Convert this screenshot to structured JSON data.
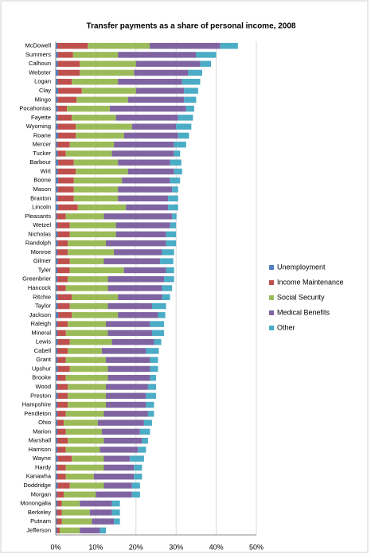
{
  "chart_data": {
    "type": "stacked-barh",
    "title": "Transfer payments as a share of personal income, 2008",
    "categories": [
      "McDowell",
      "Summers",
      "Calhoun",
      "Webster",
      "Logan",
      "Clay",
      "Mingo",
      "Pocahontas",
      "Fayette",
      "Wyoming",
      "Roane",
      "Mercer",
      "Tucker",
      "Barbour",
      "Wirt",
      "Boone",
      "Mason",
      "Braxton",
      "Lincoln",
      "Pleasants",
      "Wetzel",
      "Nicholas",
      "Randolph",
      "Monroe",
      "Gilmer",
      "Tyler",
      "Greenbrier",
      "Hancock",
      "Ritchie",
      "Taylor",
      "Jackson",
      "Raleigh",
      "Mineral",
      "Lewis",
      "Cabell",
      "Grant",
      "Upshur",
      "Brooke",
      "Wood",
      "Preston",
      "Hampshire",
      "Pendleton",
      "Ohio",
      "Marion",
      "Marshall",
      "Harrison",
      "Wayne",
      "Hardy",
      "Kanawha",
      "Doddridge",
      "Morgan",
      "Monongalia",
      "Berkeley",
      "Putnam",
      "Jefferson"
    ],
    "series": [
      {
        "name": "Unemployment",
        "color": "#4f81bd",
        "values": [
          0.4,
          0.5,
          0.5,
          0.6,
          0.5,
          0.6,
          0.5,
          0.5,
          0.5,
          0.5,
          0.6,
          0.4,
          0.5,
          0.6,
          0.5,
          0.6,
          0.5,
          0.5,
          0.6,
          0.3,
          0.4,
          0.5,
          0.5,
          0.4,
          0.5,
          0.4,
          0.4,
          0.4,
          0.5,
          0.5,
          0.6,
          0.4,
          0.4,
          0.5,
          0.4,
          0.4,
          0.5,
          0.4,
          0.4,
          0.5,
          0.4,
          0.4,
          0.4,
          0.4,
          0.4,
          0.4,
          0.5,
          0.4,
          0.4,
          0.5,
          0.3,
          0.4,
          0.3,
          0.3,
          0.3
        ]
      },
      {
        "name": "Income Maintenance",
        "color": "#c0504d",
        "values": [
          7.6,
          3.8,
          5.5,
          5.4,
          3.5,
          5.9,
          4.7,
          2.3,
          3.5,
          4.5,
          4.4,
          3.1,
          2,
          3.9,
          4.5,
          3.9,
          4,
          4,
          4.9,
          2.2,
          3.1,
          3,
          2.5,
          2.6,
          3,
          3.1,
          2.6,
          2.1,
          3.5,
          3,
          3.4,
          2.6,
          2.1,
          3,
          2.6,
          2.1,
          3,
          2.1,
          2.6,
          2.5,
          2.6,
          2.1,
          1.6,
          2.1,
          2.6,
          2.1,
          3.5,
          2.1,
          2.1,
          3,
          1.7,
          1.1,
          1.2,
          1.2,
          0.7
        ]
      },
      {
        "name": "Social Security",
        "color": "#9bbb59",
        "values": [
          15.4,
          11.2,
          14,
          13.5,
          11.5,
          13.5,
          12.8,
          10.7,
          11,
          14,
          12,
          11,
          11.5,
          11,
          13,
          12,
          11,
          11,
          12,
          9.5,
          11.5,
          11.5,
          9.5,
          11.5,
          8.5,
          13.5,
          10,
          10.5,
          11.5,
          9.5,
          11.5,
          9.5,
          10.5,
          10.5,
          8.5,
          10,
          9.5,
          10.5,
          9.5,
          9.5,
          9.5,
          9.5,
          8.5,
          9,
          9,
          8.5,
          8,
          9.5,
          7,
          8.5,
          8,
          4.5,
          7,
          7.5,
          5
        ]
      },
      {
        "name": "Medical Benefits",
        "color": "#8064a2",
        "values": [
          17.6,
          19.5,
          16,
          13.5,
          16,
          12,
          14,
          19,
          15.5,
          11,
          13.5,
          15,
          15.5,
          13,
          11.5,
          12,
          13.5,
          12.5,
          10.5,
          17,
          13.5,
          12.5,
          15,
          12,
          14,
          10.5,
          14,
          13.5,
          11,
          11,
          10,
          11,
          11,
          10.5,
          11,
          11,
          10.5,
          10.5,
          10.5,
          10,
          10,
          11,
          11.5,
          9.5,
          9.5,
          9.5,
          6.5,
          7.5,
          10,
          7,
          9,
          8,
          5.5,
          5.5,
          5
        ]
      },
      {
        "name": "Other",
        "color": "#4bacc6",
        "values": [
          4.4,
          5,
          2.7,
          3.5,
          4.5,
          3.5,
          3,
          2,
          3.7,
          3.8,
          2.7,
          3,
          1.5,
          2.8,
          2,
          2.5,
          1.5,
          2.5,
          2.5,
          1.1,
          1.5,
          2.5,
          2.5,
          3,
          3.3,
          2,
          2.5,
          2.5,
          2,
          3.5,
          1.8,
          3.5,
          3,
          1.8,
          3.2,
          2,
          2,
          1.5,
          2,
          2.5,
          2,
          1.5,
          2,
          2.5,
          1.5,
          2,
          3.5,
          2,
          2,
          2,
          2,
          2,
          2,
          1.5,
          1.5
        ]
      }
    ],
    "xlim": [
      0,
      50
    ],
    "xticks": [
      {
        "value": 0,
        "label": "0%"
      },
      {
        "value": 10,
        "label": "10%"
      },
      {
        "value": 20,
        "label": "20%"
      },
      {
        "value": 30,
        "label": "30%"
      },
      {
        "value": 40,
        "label": "40%"
      },
      {
        "value": 50,
        "label": "50%"
      }
    ],
    "grid": true,
    "legend": "right"
  }
}
